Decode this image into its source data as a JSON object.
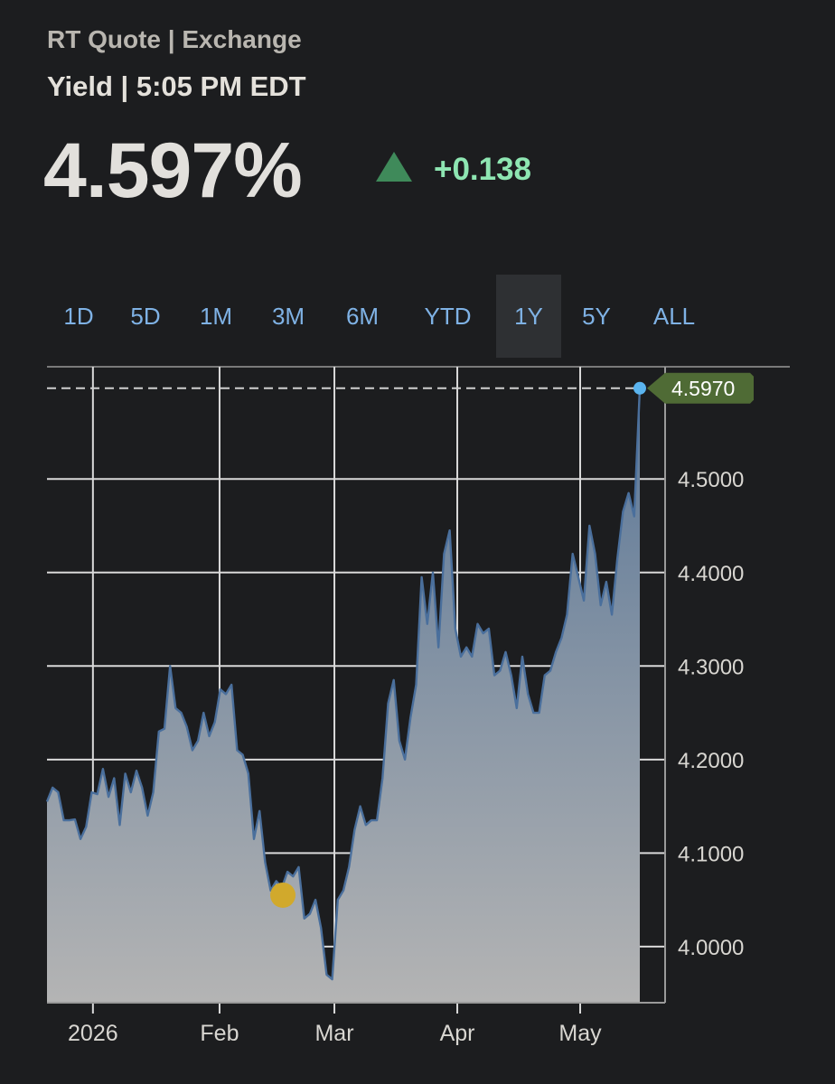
{
  "header": {
    "source": "RT Quote | Exchange",
    "time": "Yield | 5:05 PM EDT"
  },
  "quote": {
    "price": "4.597%",
    "change": "+0.138",
    "direction": "up",
    "up_color": "#8ee6b2",
    "icon": "triangle-up-icon"
  },
  "tabs": [
    {
      "label": "1D",
      "active": false
    },
    {
      "label": "5D",
      "active": false
    },
    {
      "label": "1M",
      "active": false
    },
    {
      "label": "3M",
      "active": false
    },
    {
      "label": "6M",
      "active": false
    },
    {
      "label": "YTD",
      "active": false
    },
    {
      "label": "1Y",
      "active": true
    },
    {
      "label": "5Y",
      "active": false
    },
    {
      "label": "ALL",
      "active": false
    }
  ],
  "chart_data": {
    "type": "area",
    "x_ticks": [
      "2026",
      "Feb",
      "Mar",
      "Apr",
      "May"
    ],
    "y_ticks": [
      "4.0000",
      "4.1000",
      "4.2000",
      "4.3000",
      "4.4000",
      "4.5000"
    ],
    "y_tick_values": [
      4.0,
      4.1,
      4.2,
      4.3,
      4.4,
      4.5
    ],
    "ylim": [
      3.94,
      4.62
    ],
    "grid": true,
    "last_value_label": "4.5970",
    "last_value": 4.597,
    "colors": {
      "line": "#4a6f9c",
      "fill_top": "#5b7797",
      "fill_bottom": "#b4b4b4",
      "last_label_bg": "#4f6b35",
      "marker_last": "#5ab4ef",
      "marker_event": "#d1a92c"
    },
    "event_marker_value": 4.055,
    "values": [
      4.155,
      4.17,
      4.165,
      4.135,
      4.135,
      4.136,
      4.115,
      4.128,
      4.165,
      4.163,
      4.19,
      4.16,
      4.18,
      4.13,
      4.185,
      4.165,
      4.188,
      4.17,
      4.14,
      4.165,
      4.23,
      4.233,
      4.3,
      4.255,
      4.25,
      4.235,
      4.21,
      4.22,
      4.25,
      4.225,
      4.24,
      4.275,
      4.27,
      4.28,
      4.21,
      4.205,
      4.185,
      4.115,
      4.145,
      4.09,
      4.06,
      4.07,
      4.063,
      4.08,
      4.075,
      4.085,
      4.03,
      4.035,
      4.05,
      4.02,
      3.97,
      3.965,
      4.05,
      4.06,
      4.085,
      4.125,
      4.15,
      4.13,
      4.135,
      4.135,
      4.18,
      4.26,
      4.285,
      4.22,
      4.2,
      4.245,
      4.28,
      4.395,
      4.345,
      4.4,
      4.32,
      4.42,
      4.445,
      4.34,
      4.31,
      4.32,
      4.31,
      4.345,
      4.335,
      4.34,
      4.29,
      4.295,
      4.315,
      4.29,
      4.255,
      4.31,
      4.27,
      4.25,
      4.25,
      4.29,
      4.295,
      4.315,
      4.33,
      4.355,
      4.42,
      4.395,
      4.37,
      4.45,
      4.42,
      4.365,
      4.39,
      4.355,
      4.415,
      4.465,
      4.485,
      4.46,
      4.597
    ]
  }
}
